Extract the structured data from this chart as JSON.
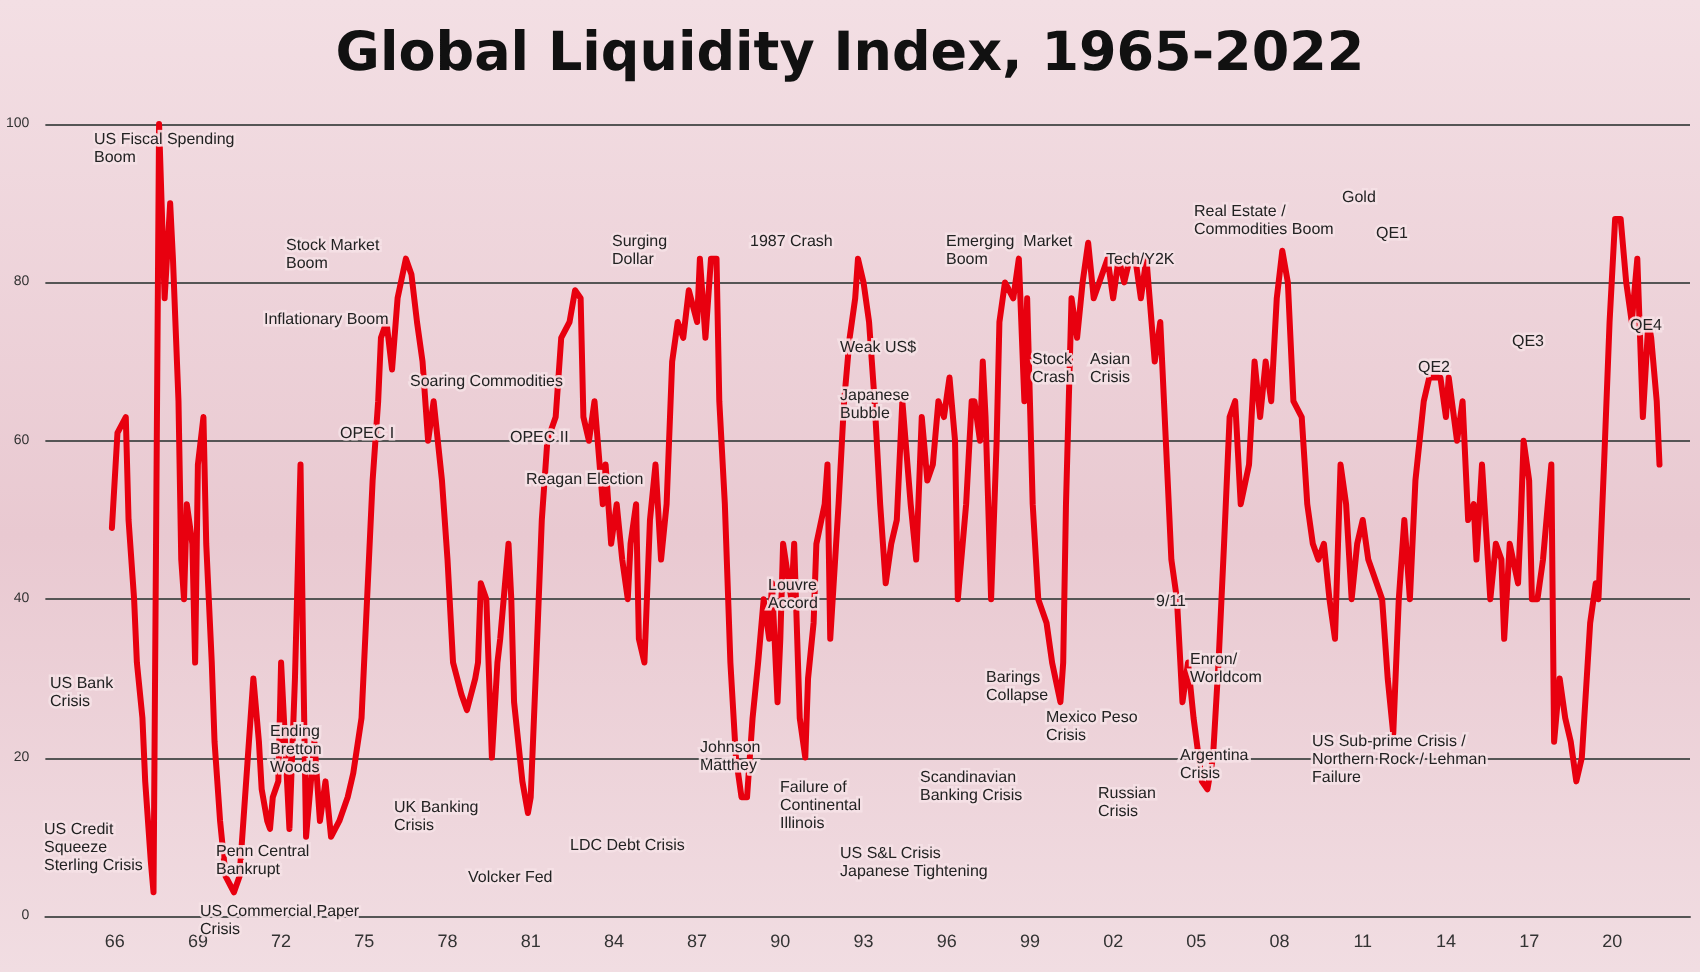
{
  "chart_data": {
    "type": "line",
    "title": "Global Liquidity Index, 1965-2022",
    "xlim": [
      1963.5,
      2022.8
    ],
    "xticks": [
      {
        "value": 1966,
        "label": "66"
      },
      {
        "value": 1969,
        "label": "69"
      },
      {
        "value": 1972,
        "label": "72"
      },
      {
        "value": 1975,
        "label": "75"
      },
      {
        "value": 1978,
        "label": "78"
      },
      {
        "value": 1981,
        "label": "81"
      },
      {
        "value": 1984,
        "label": "84"
      },
      {
        "value": 1987,
        "label": "87"
      },
      {
        "value": 1990,
        "label": "90"
      },
      {
        "value": 1993,
        "label": "93"
      },
      {
        "value": 1996,
        "label": "96"
      },
      {
        "value": 1999,
        "label": "99"
      },
      {
        "value": 2002,
        "label": "02"
      },
      {
        "value": 2005,
        "label": "05"
      },
      {
        "value": 2008,
        "label": "08"
      },
      {
        "value": 2011,
        "label": "11"
      },
      {
        "value": 2014,
        "label": "14"
      },
      {
        "value": 2017,
        "label": "17"
      },
      {
        "value": 2020,
        "label": "20"
      }
    ],
    "ylim": [
      0,
      100
    ],
    "yticks": [
      0,
      20,
      40,
      60,
      80,
      100
    ],
    "grid": "y",
    "marker": "none",
    "line_style": "solid",
    "series": [
      {
        "color": "#e8000f",
        "x": [
          1965.9,
          1966.1,
          1966.4,
          1966.5,
          1966.7,
          1966.8,
          1967.0,
          1967.1,
          1967.3,
          1967.4,
          1967.6,
          1967.8,
          1968.0,
          1968.1,
          1968.3,
          1968.4,
          1968.5,
          1968.6,
          1968.8,
          1968.9,
          1969.0,
          1969.2,
          1969.3,
          1969.5,
          1969.6,
          1969.8,
          1970.0,
          1970.3,
          1970.5,
          1970.7,
          1970.9,
          1971.0,
          1971.2,
          1971.3,
          1971.5,
          1971.6,
          1971.7,
          1971.9,
          1972.0,
          1972.3,
          1972.5,
          1972.7,
          1972.8,
          1972.9,
          1973.2,
          1973.4,
          1973.6,
          1973.8,
          1974.1,
          1974.4,
          1974.6,
          1974.9,
          1975.1,
          1975.3,
          1975.5,
          1975.6,
          1975.8,
          1976.0,
          1976.2,
          1976.5,
          1976.7,
          1976.9,
          1977.1,
          1977.3,
          1977.5,
          1977.8,
          1978.0,
          1978.2,
          1978.5,
          1978.7,
          1979.0,
          1979.1,
          1979.2,
          1979.4,
          1979.6,
          1979.8,
          1979.9,
          1980.2,
          1980.3,
          1980.4,
          1980.7,
          1980.9,
          1981.0,
          1981.2,
          1981.4,
          1981.6,
          1981.9,
          1982.1,
          1982.4,
          1982.6,
          1982.8,
          1982.9,
          1983.1,
          1983.3,
          1983.6,
          1983.7,
          1983.9,
          1984.1,
          1984.3,
          1984.5,
          1984.6,
          1984.8,
          1984.9,
          1985.1,
          1985.3,
          1985.5,
          1985.7,
          1985.9,
          1986.1,
          1986.3,
          1986.5,
          1986.7,
          1987.0,
          1987.1,
          1987.3,
          1987.5,
          1987.7,
          1987.8,
          1988.0,
          1988.2,
          1988.4,
          1988.6,
          1988.8,
          1989.0,
          1989.2,
          1989.4,
          1989.6,
          1989.7,
          1989.9,
          1990.0,
          1990.1,
          1990.4,
          1990.5,
          1990.7,
          1990.9,
          1991.0,
          1991.2,
          1991.3,
          1991.6,
          1991.7,
          1991.8,
          1992.1,
          1992.3,
          1992.5,
          1992.7,
          1992.8,
          1993.0,
          1993.2,
          1993.4,
          1993.6,
          1993.8,
          1994.0,
          1994.2,
          1994.4,
          1994.7,
          1994.9,
          1995.1,
          1995.3,
          1995.5,
          1995.7,
          1995.9,
          1996.1,
          1996.3,
          1996.4,
          1996.7,
          1996.9,
          1997.0,
          1997.2,
          1997.3,
          1997.4,
          1997.6,
          1997.8,
          1997.9,
          1998.1,
          1998.4,
          1998.6,
          1998.8,
          1998.9,
          1999.1,
          1999.3,
          1999.6,
          1999.8,
          2000.1,
          2000.2,
          2000.3,
          2000.5,
          2000.7,
          2000.9,
          2001.1,
          2001.3,
          2001.5,
          2001.8,
          2002.0,
          2002.2,
          2002.4,
          2002.6,
          2002.8,
          2003.0,
          2003.2,
          2003.5,
          2003.7,
          2003.9,
          2004.1,
          2004.3,
          2004.5,
          2004.7,
          2004.9,
          2005.2,
          2005.4,
          2005.6,
          2005.8,
          2006.0,
          2006.2,
          2006.4,
          2006.6,
          2006.9,
          2007.1,
          2007.3,
          2007.5,
          2007.7,
          2007.9,
          2008.1,
          2008.3,
          2008.5,
          2008.8,
          2009.0,
          2009.2,
          2009.4,
          2009.6,
          2009.8,
          2010.0,
          2010.2,
          2010.4,
          2010.6,
          2010.8,
          2011.0,
          2011.2,
          2011.5,
          2011.7,
          2011.9,
          2012.1,
          2012.3,
          2012.5,
          2012.7,
          2012.9,
          2013.2,
          2013.4,
          2013.6,
          2013.8,
          2014.0,
          2014.1,
          2014.4,
          2014.6,
          2014.8,
          2015.0,
          2015.1,
          2015.3,
          2015.6,
          2015.8,
          2016.0,
          2016.1,
          2016.3,
          2016.6,
          2016.7,
          2016.8,
          2017.0,
          2017.1,
          2017.3,
          2017.5,
          2017.8,
          2017.9,
          2018.1,
          2018.3,
          2018.5,
          2018.7,
          2018.9,
          2019.2,
          2019.4,
          2019.5,
          2019.7,
          2019.9,
          2020.1,
          2020.3,
          2020.5,
          2020.7,
          2020.9,
          2021.1,
          2021.3,
          2021.4,
          2021.6,
          2021.7
        ],
        "values": [
          49,
          61,
          63,
          50,
          40,
          32,
          25,
          17,
          7,
          3,
          100,
          78,
          90,
          83,
          65,
          45,
          40,
          52,
          47,
          32,
          57,
          63,
          47,
          32,
          22,
          12,
          5,
          3,
          5,
          15,
          25,
          30,
          22,
          16,
          12,
          11,
          15,
          17,
          32,
          11,
          30,
          57,
          32,
          10,
          22,
          12,
          17,
          10,
          12,
          15,
          18,
          25,
          40,
          55,
          65,
          73,
          75,
          69,
          78,
          83,
          81,
          75,
          70,
          60,
          65,
          55,
          45,
          32,
          28,
          26,
          30,
          32,
          42,
          40,
          20,
          32,
          35,
          47,
          40,
          27,
          17,
          13,
          15,
          32,
          50,
          60,
          63,
          73,
          75,
          79,
          78,
          63,
          60,
          65,
          52,
          57,
          47,
          52,
          45,
          40,
          47,
          52,
          35,
          32,
          50,
          57,
          45,
          52,
          70,
          75,
          73,
          79,
          75,
          83,
          73,
          83,
          83,
          65,
          52,
          32,
          20,
          15,
          15,
          25,
          32,
          40,
          35,
          42,
          27,
          35,
          47,
          40,
          47,
          25,
          20,
          30,
          37,
          47,
          52,
          57,
          35,
          52,
          65,
          73,
          78,
          83,
          80,
          75,
          65,
          52,
          42,
          47,
          50,
          65,
          52,
          45,
          63,
          55,
          57,
          65,
          63,
          68,
          60,
          40,
          52,
          65,
          65,
          60,
          70,
          63,
          40,
          60,
          75,
          80,
          78,
          83,
          65,
          78,
          52,
          40,
          37,
          32,
          27,
          32,
          52,
          78,
          73,
          80,
          85,
          78,
          80,
          83,
          78,
          83,
          80,
          83,
          83,
          78,
          83,
          70,
          75,
          60,
          45,
          40,
          27,
          32,
          25,
          17,
          16,
          20,
          32,
          47,
          63,
          65,
          52,
          57,
          70,
          63,
          70,
          65,
          78,
          84,
          80,
          65,
          63,
          52,
          47,
          45,
          47,
          40,
          35,
          57,
          52,
          40,
          47,
          50,
          45,
          42,
          40,
          30,
          23,
          40,
          50,
          40,
          55,
          65,
          68,
          68,
          68,
          63,
          68,
          60,
          65,
          50,
          52,
          45,
          57,
          40,
          47,
          45,
          35,
          47,
          42,
          50,
          60,
          55,
          40,
          40,
          45,
          57,
          22,
          30,
          25,
          22,
          17,
          20,
          37,
          42,
          40,
          57,
          75,
          88,
          88,
          80,
          75,
          83,
          63,
          75,
          73,
          65,
          57
        ]
      }
    ],
    "annotations": [
      "US Fiscal Spending\nBoom",
      "Stock Market\nBoom",
      "Inflationary Boom",
      "Soaring Commodities",
      "OPEC I",
      "OPEC II",
      "Reagan Election",
      "Surging\nDollar",
      "1987 Crash",
      "Weak US$",
      "Japanese\nBubble",
      "Emerging  Market\nBoom",
      "Stock\nCrash",
      "Asian\nCrisis",
      "Tech/Y2K",
      "Real Estate /\nCommodities Boom",
      "Gold",
      "QE1",
      "QE2",
      "QE3",
      "QE4",
      "US Bank\nCrisis",
      "US Credit\nSqueeze\nSterling Crisis",
      "Ending\nBretton\nWoods",
      "Penn Central\nBankrupt",
      "US Commercial Paper\nCrisis",
      "UK Banking\nCrisis",
      "Volcker Fed",
      "LDC Debt Crisis",
      "Johnson\nMatthey",
      "Louvre\nAccord",
      "Failure of\nContinental\nIllinois",
      "US S&L Crisis\nJapanese Tightening",
      "Scandinavian\nBanking Crisis",
      "Barings\nCollapse",
      "Mexico Peso\nCrisis",
      "Russian\nCrisis",
      "9/11",
      "Enron/\nWorldcom",
      "Argentina\nCrisis",
      "US Sub-prime Crisis /\nNorthern Rock / Lehman\nFailure"
    ]
  }
}
